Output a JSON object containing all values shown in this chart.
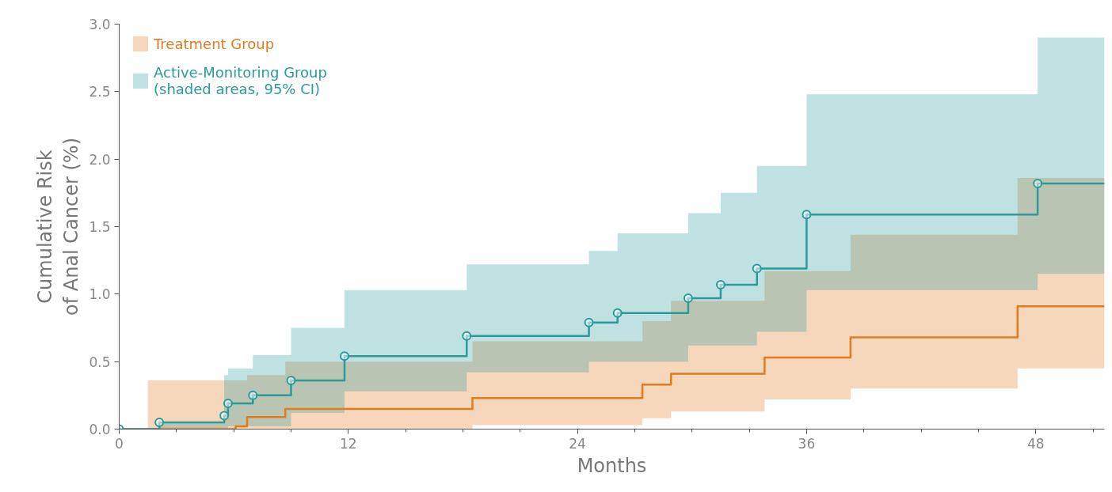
{
  "chart_data": {
    "type": "step",
    "xlabel": "Months",
    "ylabel": "Cumulative Risk\nof Anal Cancer (%)",
    "xlim": [
      0,
      51.6
    ],
    "ylim": [
      0,
      3.0
    ],
    "xticks": [
      0,
      {
        "value": 3,
        "label": null
      },
      {
        "value": 6,
        "label": null
      },
      {
        "value": 9,
        "label": null
      },
      12,
      {
        "value": 15,
        "label": null
      },
      {
        "value": 18,
        "label": null
      },
      {
        "value": 21,
        "label": null
      },
      24,
      {
        "value": 27,
        "label": null
      },
      {
        "value": 30,
        "label": null
      },
      {
        "value": 33,
        "label": null
      },
      36,
      {
        "value": 39,
        "label": null
      },
      {
        "value": 42,
        "label": null
      },
      {
        "value": 45,
        "label": null
      },
      48,
      {
        "value": 51,
        "label": null
      }
    ],
    "yticks": [
      {
        "value": 0,
        "label": "0.0"
      },
      {
        "value": 0.5,
        "label": "0.5"
      },
      {
        "value": 1.0,
        "label": "1.0"
      },
      {
        "value": 1.5,
        "label": "1.5"
      },
      {
        "value": 2.0,
        "label": "2.0"
      },
      {
        "value": 2.5,
        "label": "2.5"
      },
      {
        "value": 3.0,
        "label": "3.0"
      }
    ],
    "grid": false,
    "legend": "top left",
    "line_style": "solid",
    "series": [
      {
        "name": "Treatment Group",
        "color": "#e07b20",
        "marker": "none",
        "x": [
          0,
          1.5,
          6.1,
          6.7,
          8.7,
          18.5,
          27.4,
          28.9,
          33.8,
          38.3,
          47.05,
          51.6
        ],
        "values": [
          0,
          0,
          0.02,
          0.09,
          0.15,
          0.23,
          0.33,
          0.41,
          0.53,
          0.68,
          0.91,
          0.91
        ],
        "lower": [
          0,
          0,
          0,
          0,
          0,
          0.03,
          0.08,
          0.13,
          0.22,
          0.3,
          0.45,
          0.45
        ],
        "upper": [
          0,
          0.36,
          0.36,
          0.4,
          0.5,
          0.65,
          0.8,
          0.95,
          1.17,
          1.44,
          1.86,
          1.86
        ]
      },
      {
        "name": "Active-Monitoring Group\n(shaded areas, 95% CI)",
        "color": "#2a9a9a",
        "marker": "circle",
        "x": [
          0,
          2.1,
          5.5,
          5.7,
          7.0,
          9.0,
          11.8,
          18.2,
          24.6,
          26.1,
          29.8,
          31.5,
          33.4,
          36.0,
          48.1,
          51.6
        ],
        "values": [
          0,
          0.05,
          0.1,
          0.19,
          0.25,
          0.36,
          0.54,
          0.69,
          0.79,
          0.86,
          0.97,
          1.07,
          1.19,
          1.59,
          1.82,
          1.82
        ],
        "lower": [
          0,
          0,
          0,
          0.02,
          0.02,
          0.12,
          0.28,
          0.42,
          0.5,
          0.5,
          0.62,
          0.62,
          0.72,
          1.03,
          1.15,
          1.15
        ],
        "upper": [
          0,
          0.05,
          0.4,
          0.45,
          0.55,
          0.75,
          1.03,
          1.22,
          1.32,
          1.45,
          1.6,
          1.75,
          1.95,
          2.48,
          2.9,
          2.9
        ]
      }
    ]
  }
}
